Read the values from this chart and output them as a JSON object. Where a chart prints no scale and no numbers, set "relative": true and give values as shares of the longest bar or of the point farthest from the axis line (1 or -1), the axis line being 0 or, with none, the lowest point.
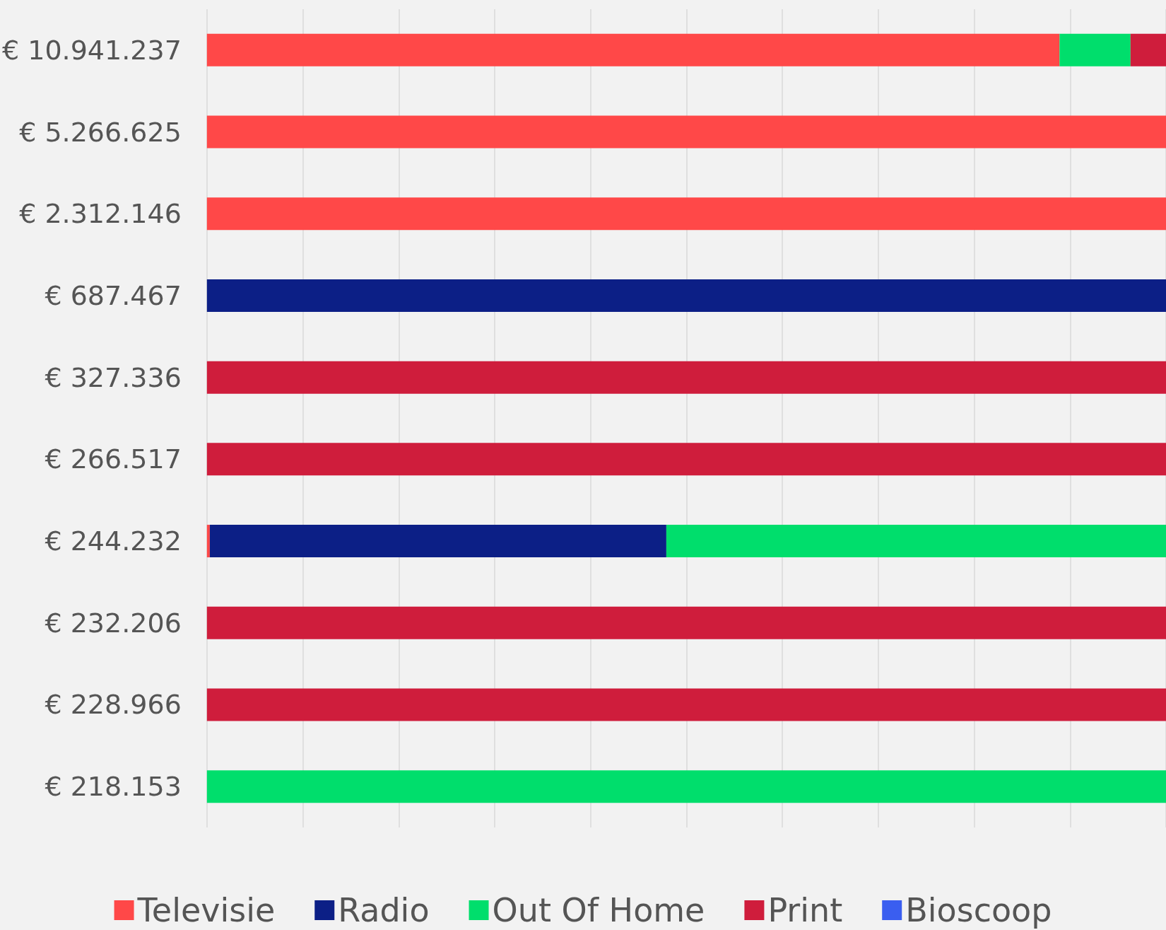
{
  "chart_data": {
    "type": "bar",
    "orientation": "horizontal",
    "stacked": true,
    "relative": true,
    "grid": "x",
    "legend": "bottom",
    "categories": [
      "€ 10.941.237",
      "€ 5.266.625",
      "€ 2.312.146",
      "€ 687.467",
      "€ 327.336",
      "€ 266.517",
      "€ 244.232",
      "€ 232.206",
      "€ 228.966",
      "€ 218.153"
    ],
    "series": [
      {
        "name": "Televisie",
        "color": "#ff4848",
        "values": [
          0.889,
          1,
          1,
          0,
          0,
          0,
          0.003,
          0,
          0,
          0
        ]
      },
      {
        "name": "Radio",
        "color": "#0c1f86",
        "values": [
          0,
          0,
          0,
          1,
          0,
          0,
          0.476,
          0,
          0,
          0
        ]
      },
      {
        "name": "Out Of Home",
        "color": "#00de6c",
        "values": [
          0.074,
          0,
          0,
          0,
          0,
          0,
          0.521,
          0,
          0,
          1
        ]
      },
      {
        "name": "Print",
        "color": "#cf1d3c",
        "values": [
          0.037,
          0,
          0,
          0,
          1,
          1,
          0,
          1,
          1,
          0
        ]
      },
      {
        "name": "Bioscoop",
        "color": "#3a5ef0",
        "values": [
          0,
          0,
          0,
          0,
          0,
          0,
          0,
          0,
          0,
          0
        ]
      }
    ]
  }
}
